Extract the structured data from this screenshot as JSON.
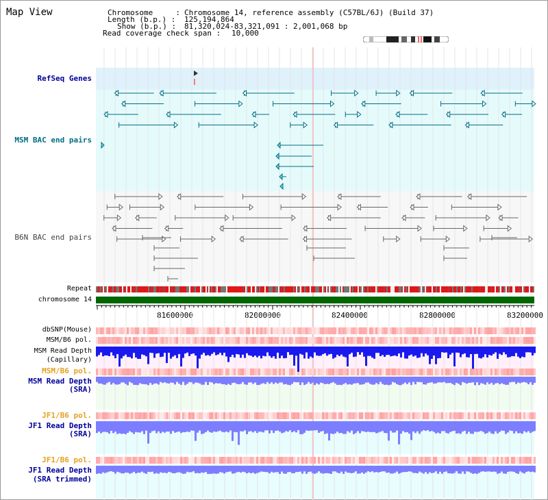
{
  "title": "Map View",
  "header": {
    "chromosome_label": "Chromosome     :",
    "chromosome_value": "Chromosome 14, reference assembly (C57BL/6J) (Build 37)",
    "length_label": "Length (b.p.) :",
    "length_value": "125,194,864",
    "show_label": "Show (b.p.) :",
    "show_value": "81,320,024-83,321,091 : 2,001,068 bp",
    "coverage_label": "Read coverage check span :",
    "coverage_value": "10,000"
  },
  "tracks": {
    "refseq": "RefSeq Genes",
    "msm_bac": "MSM BAC end pairs",
    "b6n_bac": "B6N BAC end pairs",
    "repeat": "Repeat",
    "chromosome": "chromosome 14",
    "dbsnp": "dbSNP(Mouse)",
    "msm_b6_pol": "MSM/B6 pol.",
    "msm_read_depth_cap_1": "MSM Read Depth",
    "msm_read_depth_cap_2": "(Capillary)",
    "msm_b6_pol_2": "MSM/B6 pol.",
    "msm_read_depth_sra_1": "MSM Read Depth",
    "msm_read_depth_sra_2": "(SRA)",
    "jf1_b6_pol": "JF1/B6 pol.",
    "jf1_read_depth_sra_1": "JF1 Read Depth",
    "jf1_read_depth_sra_2": "(SRA)",
    "jf1_b6_pol_2": "JF1/B6 pol.",
    "jf1_read_depth_trim_1": "JF1 Read Depth",
    "jf1_read_depth_trim_2": "(SRA trimmed)"
  },
  "axis": {
    "ticks": [
      "81600000",
      "82000000",
      "82400000",
      "82800000",
      "83200000"
    ]
  },
  "colors": {
    "refseq_bg": "#dff1fb",
    "bac_bg": "#e5fbfb",
    "gene": "#006d85",
    "b6n": "#666666",
    "chromosome": "#006600",
    "pol": "#ff4444",
    "depth_cap": "#1a1aee",
    "depth_sra": "#7d7dff",
    "orange_label": "#e6a020",
    "blue_label": "#000099"
  }
}
